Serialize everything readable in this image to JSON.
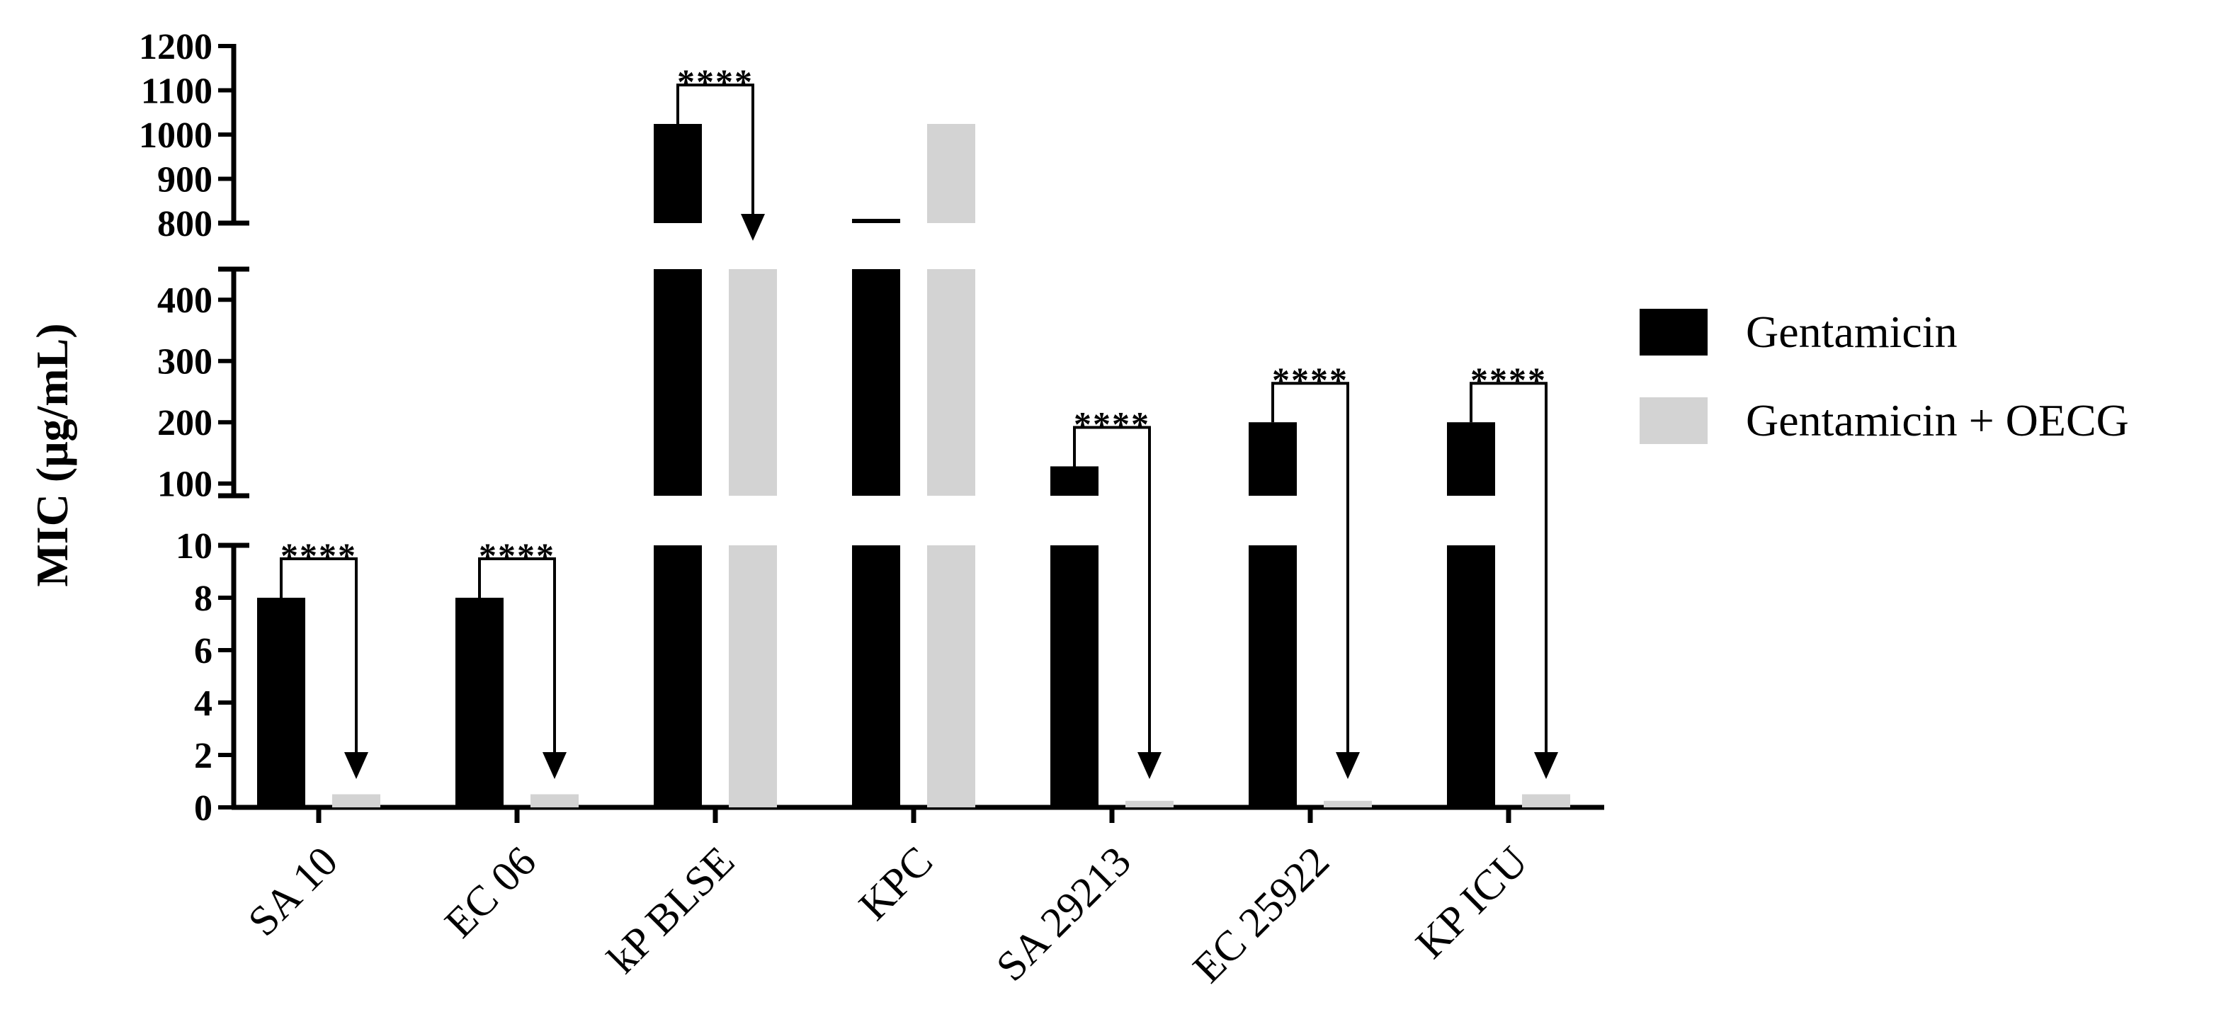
{
  "colors": {
    "gentamicin": "#000000",
    "gentamicin_oecg": "#d3d3d3",
    "axis": "#000000",
    "background": "#ffffff"
  },
  "chart_data": {
    "type": "bar",
    "ylabel": "MIC (μg/mL)",
    "xlabel": "",
    "title": "",
    "y_scale": "broken",
    "y_segments": [
      {
        "range": [
          0,
          10
        ],
        "ticks": [
          0,
          2,
          4,
          6,
          8,
          10
        ]
      },
      {
        "range": [
          80,
          450
        ],
        "ticks": [
          100,
          200,
          300,
          400
        ]
      },
      {
        "range": [
          800,
          1200
        ],
        "ticks": [
          800,
          900,
          1000,
          1100,
          1200
        ]
      }
    ],
    "categories": [
      "SA 10",
      "EC 06",
      "kP BLSE",
      "KPC",
      "SA 29213",
      "EC 25922",
      "KP ICU"
    ],
    "series": [
      {
        "name": "Gentamicin",
        "values": [
          8,
          8,
          1024,
          808,
          128,
          200,
          200
        ]
      },
      {
        "name": "Gentamicin + OECG",
        "values": [
          0.5,
          0.5,
          512,
          1024,
          0.25,
          0.25,
          0.5
        ]
      }
    ],
    "significance": [
      {
        "category": "SA 10",
        "label": "****"
      },
      {
        "category": "EC 06",
        "label": "****"
      },
      {
        "category": "kP BLSE",
        "label": "****"
      },
      {
        "category": "SA 29213",
        "label": "****"
      },
      {
        "category": "EC 25922",
        "label": "****"
      },
      {
        "category": "KP ICU",
        "label": "****"
      }
    ],
    "legend": {
      "position": "right",
      "items": [
        "Gentamicin",
        "Gentamicin + OECG"
      ]
    },
    "grid": false
  }
}
